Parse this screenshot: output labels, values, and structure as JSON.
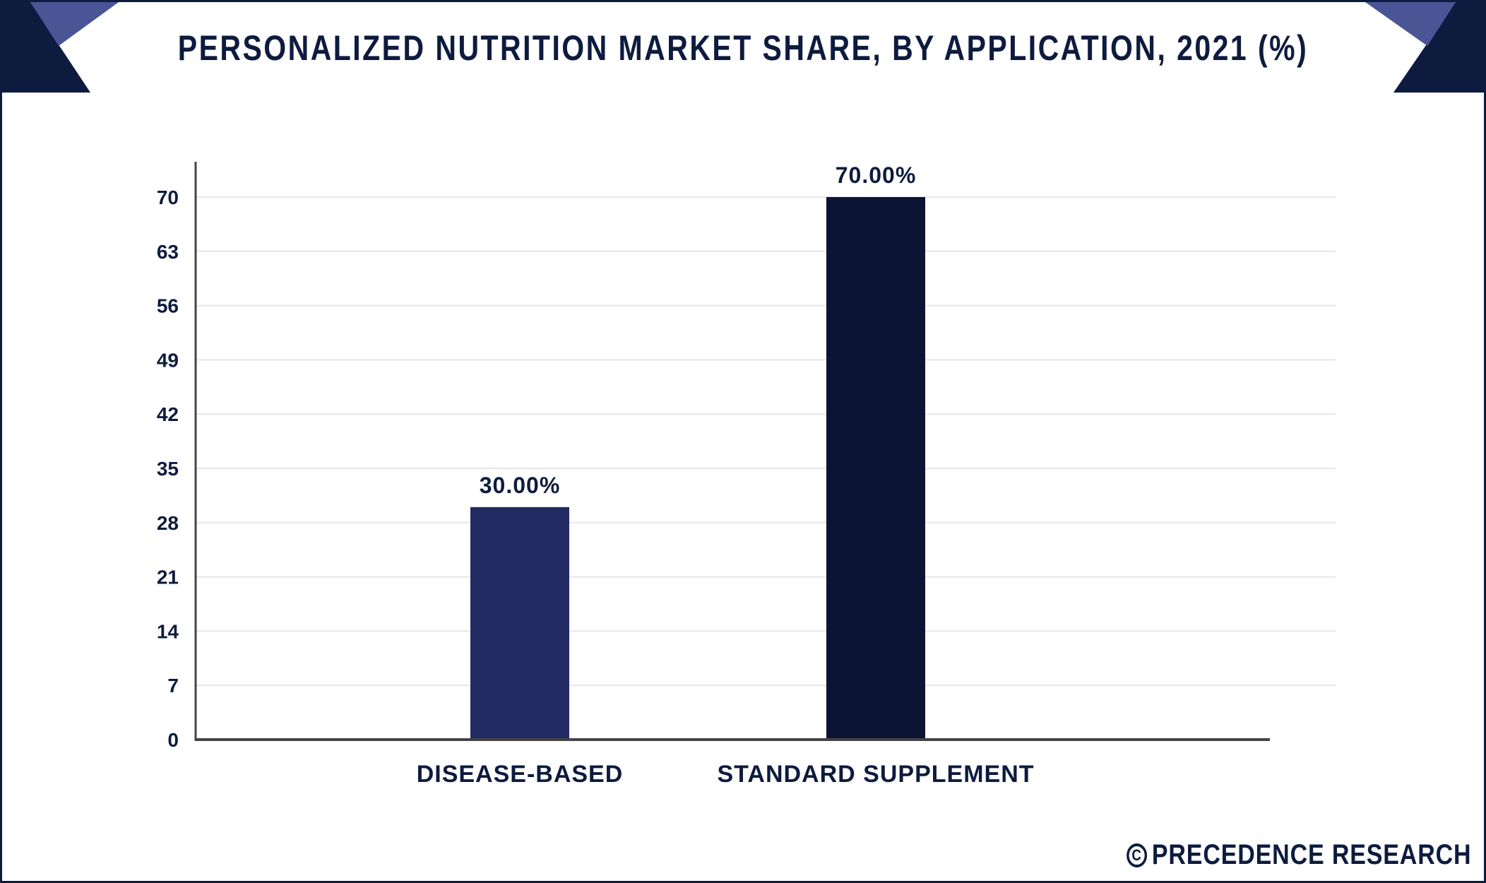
{
  "header": {
    "title": "PERSONALIZED NUTRITION MARKET SHARE, BY APPLICATION, 2021 (%)"
  },
  "footer": {
    "copyright_symbol": "C",
    "brand": "PRECEDENCE RESEARCH"
  },
  "colors": {
    "frame": "#0d1b3e",
    "corner_light": "#4a5596",
    "bar_disease": "#222b61",
    "bar_standard": "#0b1433",
    "grid": "#e6e6e6",
    "axis": "#444444"
  },
  "chart_data": {
    "type": "bar",
    "title": "PERSONALIZED NUTRITION MARKET SHARE, BY APPLICATION, 2021 (%)",
    "categories": [
      "DISEASE-BASED",
      "STANDARD SUPPLEMENT"
    ],
    "values": [
      30,
      70
    ],
    "data_labels": [
      "30.00%",
      "70.00%"
    ],
    "bar_colors": [
      "#222b61",
      "#0b1433"
    ],
    "yticks": [
      "0",
      "7",
      "14",
      "21",
      "28",
      "35",
      "42",
      "49",
      "56",
      "63",
      "70"
    ],
    "ylim": [
      0,
      70
    ],
    "grid": true
  }
}
